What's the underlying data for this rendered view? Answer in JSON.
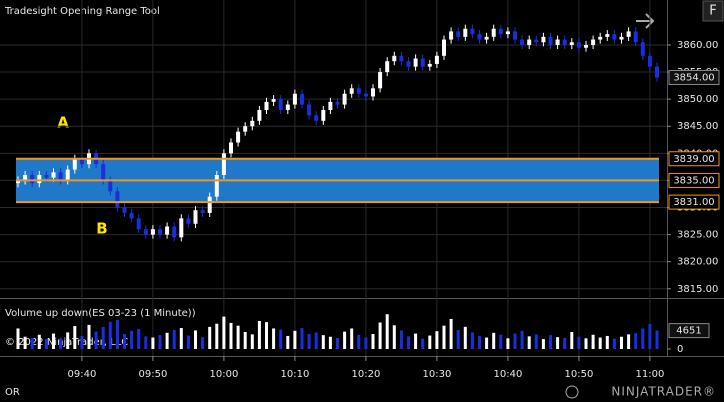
{
  "chart_data": {
    "type": "candlestick",
    "title": "Tradesight Opening Range Tool",
    "categories": [
      "09:31",
      "09:32",
      "09:33",
      "09:34",
      "09:35",
      "09:36",
      "09:37",
      "09:38",
      "09:39",
      "09:40",
      "09:41",
      "09:42",
      "09:43",
      "09:44",
      "09:45",
      "09:46",
      "09:47",
      "09:48",
      "09:49",
      "09:50",
      "09:51",
      "09:52",
      "09:53",
      "09:54",
      "09:55",
      "09:56",
      "09:57",
      "09:58",
      "09:59",
      "10:00",
      "10:01",
      "10:02",
      "10:03",
      "10:04",
      "10:05",
      "10:06",
      "10:07",
      "10:08",
      "10:09",
      "10:10",
      "10:11",
      "10:12",
      "10:13",
      "10:14",
      "10:15",
      "10:16",
      "10:17",
      "10:18",
      "10:19",
      "10:20",
      "10:21",
      "10:22",
      "10:23",
      "10:24",
      "10:25",
      "10:26",
      "10:27",
      "10:28",
      "10:29",
      "10:30",
      "10:31",
      "10:32",
      "10:33",
      "10:34",
      "10:35",
      "10:36",
      "10:37",
      "10:38",
      "10:39",
      "10:40",
      "10:41",
      "10:42",
      "10:43",
      "10:44",
      "10:45",
      "10:46",
      "10:47",
      "10:48",
      "10:49",
      "10:50",
      "10:51",
      "10:52",
      "10:53",
      "10:54",
      "10:55",
      "10:56",
      "10:57",
      "10:58",
      "10:59",
      "11:00",
      "11:01"
    ],
    "open": [
      3834.5,
      3835,
      3836,
      3834.5,
      3836,
      3835.5,
      3836.5,
      3835,
      3837,
      3839,
      3838,
      3840,
      3838,
      3835,
      3833,
      3830,
      3829,
      3828,
      3826,
      3825,
      3826,
      3825,
      3826.5,
      3824.5,
      3828,
      3827,
      3829.5,
      3829,
      3832,
      3836,
      3840,
      3842,
      3844,
      3845,
      3846,
      3848,
      3849.5,
      3850,
      3848,
      3849,
      3851,
      3849,
      3847,
      3846,
      3848,
      3849.5,
      3849,
      3851,
      3852,
      3851,
      3850.5,
      3852,
      3855,
      3857,
      3858,
      3857,
      3856,
      3857.5,
      3856,
      3856.5,
      3858,
      3861,
      3862.5,
      3861.5,
      3863,
      3862,
      3861,
      3861.5,
      3863,
      3862,
      3862.5,
      3861,
      3860,
      3861,
      3860.5,
      3861.5,
      3860,
      3861,
      3860,
      3860.5,
      3859.5,
      3860,
      3861,
      3861.5,
      3862,
      3861,
      3861.5,
      3862.5,
      3860.5,
      3858,
      3856
    ],
    "high": [
      3835.75,
      3836.75,
      3836.75,
      3836.75,
      3836.75,
      3837.25,
      3837.25,
      3837.75,
      3839.75,
      3839.75,
      3840.75,
      3840.75,
      3838.75,
      3835.75,
      3833.75,
      3830.75,
      3829.75,
      3828.75,
      3826.75,
      3826.75,
      3826.75,
      3827.25,
      3827.25,
      3828.75,
      3828.75,
      3830.25,
      3830.25,
      3832.75,
      3836.75,
      3840.75,
      3842.75,
      3844.75,
      3845.75,
      3846.75,
      3848.75,
      3850.25,
      3850.75,
      3850.75,
      3849.75,
      3851.75,
      3851.75,
      3849.75,
      3847.75,
      3848.75,
      3850.25,
      3850.25,
      3851.75,
      3852.75,
      3852.75,
      3851.75,
      3852.75,
      3855.75,
      3857.75,
      3858.75,
      3858.75,
      3857.75,
      3858.25,
      3858.25,
      3857.25,
      3858.75,
      3861.75,
      3863.25,
      3863.25,
      3863.75,
      3863.75,
      3862.75,
      3862.25,
      3863.75,
      3863.75,
      3863.25,
      3863.25,
      3861.75,
      3861.75,
      3861.75,
      3862.25,
      3862.25,
      3861.75,
      3861.75,
      3861.25,
      3861.25,
      3860.75,
      3861.75,
      3862.25,
      3862.75,
      3862.75,
      3862.25,
      3863.25,
      3863.25,
      3861.25,
      3858.75,
      3856.75
    ],
    "low": [
      3833.75,
      3834.25,
      3833.75,
      3833.75,
      3834.75,
      3834.75,
      3834.25,
      3834.25,
      3836.25,
      3837.25,
      3837.25,
      3837.25,
      3834.25,
      3832.25,
      3829.25,
      3828.25,
      3827.25,
      3825.25,
      3824.25,
      3824.25,
      3824.25,
      3824.25,
      3823.75,
      3823.75,
      3826.25,
      3826.25,
      3828.25,
      3828.25,
      3831.25,
      3835.25,
      3839.25,
      3841.25,
      3843.25,
      3844.25,
      3845.25,
      3847.25,
      3848.75,
      3847.25,
      3847.25,
      3848.25,
      3848.25,
      3846.25,
      3845.25,
      3845.25,
      3847.25,
      3848.25,
      3848.25,
      3850.25,
      3850.25,
      3849.75,
      3849.75,
      3851.25,
      3854.25,
      3856.25,
      3856.25,
      3855.25,
      3855.25,
      3855.25,
      3855.25,
      3855.75,
      3857.25,
      3860.25,
      3860.75,
      3860.75,
      3861.25,
      3860.25,
      3860.25,
      3860.75,
      3861.25,
      3861.25,
      3860.25,
      3859.25,
      3859.25,
      3859.75,
      3859.75,
      3859.25,
      3859.25,
      3859.25,
      3859.25,
      3858.75,
      3858.75,
      3859.25,
      3860.25,
      3860.75,
      3860.25,
      3860.25,
      3860.75,
      3859.75,
      3857.25,
      3855.25,
      3853.25
    ],
    "close": [
      3835,
      3836,
      3834.5,
      3836,
      3835.5,
      3836.5,
      3835,
      3837,
      3839,
      3838,
      3840,
      3838,
      3835,
      3833,
      3830,
      3829,
      3828,
      3826,
      3825,
      3826,
      3825,
      3826.5,
      3824.5,
      3828,
      3827,
      3829.5,
      3829,
      3832,
      3836,
      3840,
      3842,
      3844,
      3845,
      3846,
      3848,
      3849.5,
      3850,
      3848,
      3849,
      3851,
      3849,
      3847,
      3846,
      3848,
      3849.5,
      3849,
      3851,
      3852,
      3851,
      3850.5,
      3852,
      3855,
      3857,
      3858,
      3857,
      3856,
      3857.5,
      3856,
      3856.5,
      3858,
      3861,
      3862.5,
      3861.5,
      3863,
      3862,
      3861,
      3861.5,
      3863,
      3862,
      3862.5,
      3861,
      3860,
      3861,
      3860.5,
      3861.5,
      3860,
      3861,
      3860,
      3860.5,
      3859.5,
      3860,
      3861,
      3861.5,
      3862,
      3861,
      3861.5,
      3862.5,
      3860.5,
      3858,
      3856,
      3854
    ],
    "volume": [
      5200,
      3100,
      2800,
      3600,
      2500,
      3900,
      2700,
      4200,
      5800,
      3300,
      6100,
      4400,
      5600,
      6900,
      7400,
      3800,
      4600,
      5100,
      3200,
      2900,
      3500,
      4100,
      4800,
      5300,
      3400,
      4700,
      3000,
      5600,
      6400,
      8200,
      6600,
      5900,
      4300,
      3700,
      7100,
      6800,
      5200,
      4900,
      3300,
      4600,
      5300,
      3800,
      4200,
      3500,
      3100,
      2800,
      4400,
      5200,
      3600,
      2900,
      3800,
      6700,
      8800,
      6000,
      4700,
      3200,
      3900,
      2600,
      3400,
      4500,
      5900,
      7600,
      4800,
      5600,
      4200,
      3300,
      2900,
      4100,
      3600,
      2700,
      3900,
      4600,
      3200,
      3700,
      2500,
      3500,
      3000,
      2800,
      4300,
      3100,
      2700,
      3600,
      2900,
      3300,
      2600,
      3100,
      3700,
      4000,
      5200,
      6300,
      4651
    ],
    "colors": {
      "up": "#ffffff",
      "down": "#1a2ee0"
    },
    "ylim": [
      3813.3,
      3868.3
    ],
    "yticks": [
      {
        "value": 3815,
        "label": "3815.00"
      },
      {
        "value": 3820,
        "label": "3820.00"
      },
      {
        "value": 3825,
        "label": "3825.00"
      },
      {
        "value": 3830,
        "label": "3830.00"
      },
      {
        "value": 3835,
        "label": "3835.00"
      },
      {
        "value": 3840,
        "label": "3840.00"
      },
      {
        "value": 3845,
        "label": "3845.00"
      },
      {
        "value": 3850,
        "label": "3850.00"
      },
      {
        "value": 3855,
        "label": "3855.00"
      },
      {
        "value": 3860,
        "label": "3860.00"
      }
    ],
    "xticks": [
      "09:40",
      "09:50",
      "10:00",
      "10:10",
      "10:20",
      "10:30",
      "10:40",
      "10:50",
      "11:00"
    ],
    "grid": true,
    "opening_range": {
      "fill": "#1f78c8",
      "line_color": "#f0961e",
      "lines": [
        {
          "value": 3839,
          "label": "3839.00"
        },
        {
          "value": 3835,
          "label": "3835.00"
        },
        {
          "value": 3831,
          "label": "3831.00"
        }
      ]
    },
    "last_price": {
      "value": 3854,
      "label": "3854.00"
    },
    "annotations": [
      "A",
      "B"
    ],
    "volume_panel": {
      "title": "Volume up down(ES 03-23 (1 Minute))",
      "ylim": [
        0,
        12650
      ],
      "yticks": [
        0
      ],
      "last": 4651
    }
  },
  "ui": {
    "copyright": "© 2022 NinjaTrader, LLC",
    "footer_label": "OR",
    "logo": "NINJATRADER®",
    "button": "F"
  }
}
